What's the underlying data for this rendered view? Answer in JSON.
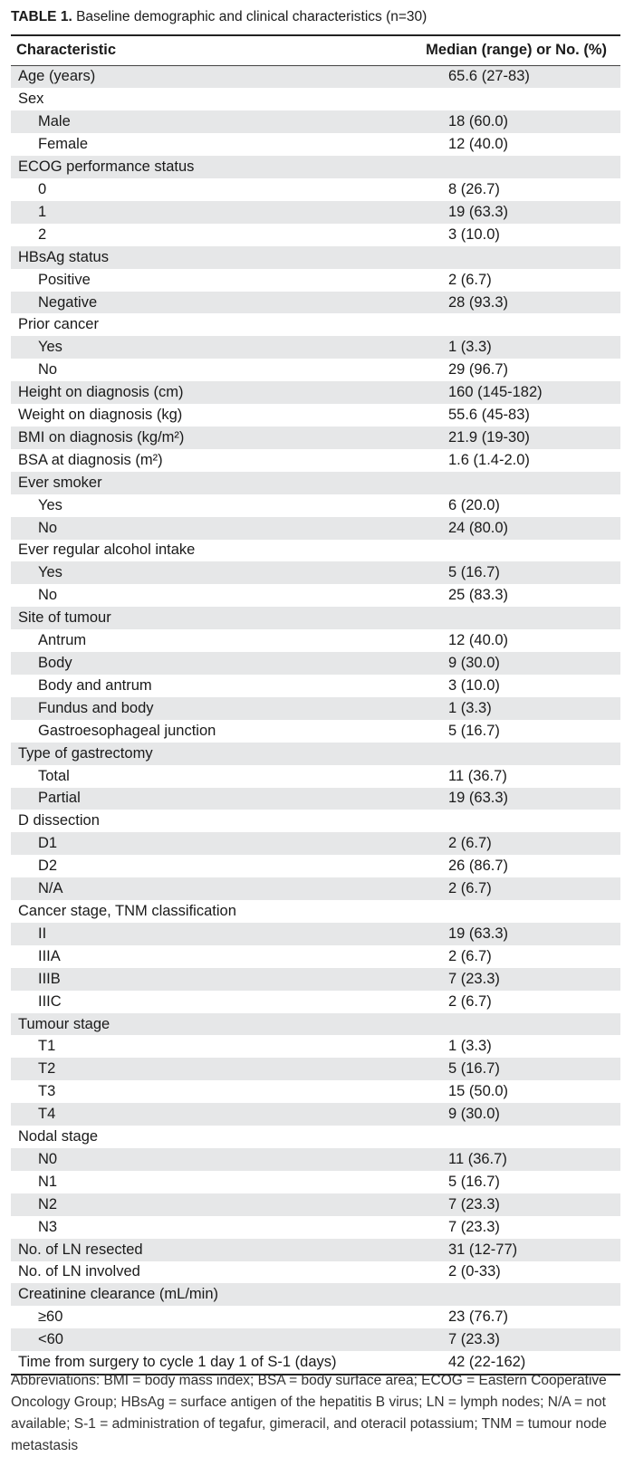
{
  "caption": {
    "label": "TABLE 1.",
    "text": "Baseline demographic and clinical characteristics (n=30)"
  },
  "table": {
    "headers": [
      "Characteristic",
      "Median (range) or No. (%)"
    ],
    "rows": [
      {
        "label": "Age (years)",
        "value": "65.6 (27-83)",
        "indent": false
      },
      {
        "label": "Sex",
        "value": "",
        "indent": false
      },
      {
        "label": "Male",
        "value": "18 (60.0)",
        "indent": true
      },
      {
        "label": "Female",
        "value": "12 (40.0)",
        "indent": true
      },
      {
        "label": "ECOG performance status",
        "value": "",
        "indent": false
      },
      {
        "label": "0",
        "value": "8 (26.7)",
        "indent": true
      },
      {
        "label": "1",
        "value": "19 (63.3)",
        "indent": true
      },
      {
        "label": "2",
        "value": "3 (10.0)",
        "indent": true
      },
      {
        "label": "HBsAg status",
        "value": "",
        "indent": false
      },
      {
        "label": "Positive",
        "value": "2 (6.7)",
        "indent": true
      },
      {
        "label": "Negative",
        "value": "28 (93.3)",
        "indent": true
      },
      {
        "label": "Prior cancer",
        "value": "",
        "indent": false
      },
      {
        "label": "Yes",
        "value": "1 (3.3)",
        "indent": true
      },
      {
        "label": "No",
        "value": "29 (96.7)",
        "indent": true
      },
      {
        "label": "Height on diagnosis (cm)",
        "value": "160 (145-182)",
        "indent": false
      },
      {
        "label": "Weight on diagnosis (kg)",
        "value": "55.6 (45-83)",
        "indent": false
      },
      {
        "label": "BMI on diagnosis (kg/m²)",
        "value": "21.9 (19-30)",
        "indent": false
      },
      {
        "label": "BSA at diagnosis (m²)",
        "value": "1.6 (1.4-2.0)",
        "indent": false
      },
      {
        "label": "Ever smoker",
        "value": "",
        "indent": false
      },
      {
        "label": "Yes",
        "value": "6 (20.0)",
        "indent": true
      },
      {
        "label": "No",
        "value": "24 (80.0)",
        "indent": true
      },
      {
        "label": "Ever regular alcohol intake",
        "value": "",
        "indent": false
      },
      {
        "label": "Yes",
        "value": "5 (16.7)",
        "indent": true
      },
      {
        "label": "No",
        "value": "25 (83.3)",
        "indent": true
      },
      {
        "label": "Site of tumour",
        "value": "",
        "indent": false
      },
      {
        "label": "Antrum",
        "value": "12 (40.0)",
        "indent": true
      },
      {
        "label": "Body",
        "value": "9 (30.0)",
        "indent": true
      },
      {
        "label": "Body and antrum",
        "value": "3 (10.0)",
        "indent": true
      },
      {
        "label": "Fundus and body",
        "value": "1 (3.3)",
        "indent": true
      },
      {
        "label": "Gastroesophageal junction",
        "value": "5 (16.7)",
        "indent": true
      },
      {
        "label": "Type of gastrectomy",
        "value": "",
        "indent": false
      },
      {
        "label": "Total",
        "value": "11 (36.7)",
        "indent": true
      },
      {
        "label": "Partial",
        "value": "19 (63.3)",
        "indent": true
      },
      {
        "label": "D dissection",
        "value": "",
        "indent": false
      },
      {
        "label": "D1",
        "value": "2 (6.7)",
        "indent": true
      },
      {
        "label": "D2",
        "value": "26 (86.7)",
        "indent": true
      },
      {
        "label": "N/A",
        "value": "2 (6.7)",
        "indent": true
      },
      {
        "label": "Cancer stage, TNM classification",
        "value": "",
        "indent": false
      },
      {
        "label": "II",
        "value": "19 (63.3)",
        "indent": true
      },
      {
        "label": "IIIA",
        "value": "2 (6.7)",
        "indent": true
      },
      {
        "label": "IIIB",
        "value": "7 (23.3)",
        "indent": true
      },
      {
        "label": "IIIC",
        "value": "2 (6.7)",
        "indent": true
      },
      {
        "label": "Tumour stage",
        "value": "",
        "indent": false
      },
      {
        "label": "T1",
        "value": "1 (3.3)",
        "indent": true
      },
      {
        "label": "T2",
        "value": "5 (16.7)",
        "indent": true
      },
      {
        "label": "T3",
        "value": "15 (50.0)",
        "indent": true
      },
      {
        "label": "T4",
        "value": "9 (30.0)",
        "indent": true
      },
      {
        "label": "Nodal stage",
        "value": "",
        "indent": false
      },
      {
        "label": "N0",
        "value": "11 (36.7)",
        "indent": true
      },
      {
        "label": "N1",
        "value": "5 (16.7)",
        "indent": true
      },
      {
        "label": "N2",
        "value": "7 (23.3)",
        "indent": true
      },
      {
        "label": "N3",
        "value": "7 (23.3)",
        "indent": true
      },
      {
        "label": "No. of LN resected",
        "value": "31 (12-77)",
        "indent": false
      },
      {
        "label": "No. of LN involved",
        "value": "2 (0-33)",
        "indent": false
      },
      {
        "label": "Creatinine clearance (mL/min)",
        "value": "",
        "indent": false
      },
      {
        "label": "≥60",
        "value": "23 (76.7)",
        "indent": true
      },
      {
        "label": "<60",
        "value": "7 (23.3)",
        "indent": true
      },
      {
        "label": "Time from surgery to cycle 1 day 1 of S-1 (days)",
        "value": "42 (22-162)",
        "indent": false
      }
    ]
  },
  "footnote": "Abbreviations: BMI = body mass index; BSA = body surface area; ECOG = Eastern Cooperative Oncology Group; HBsAg = surface antigen of the hepatitis B virus; LN = lymph nodes; N/A = not available; S-1 = administration of tegafur, gimeracil, and oteracil potassium; TNM = tumour node metastasis",
  "colors": {
    "shade": "#e6e7e8",
    "text": "#1a1a1a",
    "rule": "#222222"
  }
}
